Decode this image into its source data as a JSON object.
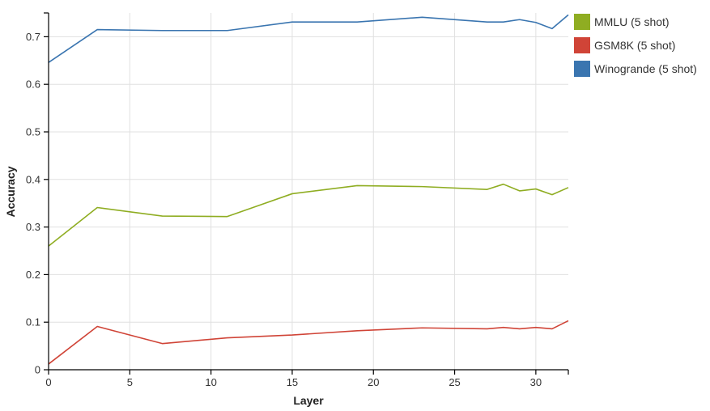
{
  "chart_data": {
    "type": "line",
    "title": "",
    "xlabel": "Layer",
    "ylabel": "Accuracy",
    "xlim": [
      0,
      32
    ],
    "ylim": [
      0,
      0.75
    ],
    "x_ticks": [
      0,
      5,
      10,
      15,
      20,
      25,
      30
    ],
    "y_ticks": [
      0,
      0.1,
      0.2,
      0.3,
      0.4,
      0.5,
      0.6,
      0.7
    ],
    "grid": true,
    "legend_position": "right",
    "series": [
      {
        "name": "MMLU (5 shot)",
        "color": "#8fad22",
        "points": [
          [
            0,
            0.26
          ],
          [
            3,
            0.341
          ],
          [
            7,
            0.323
          ],
          [
            11,
            0.322
          ],
          [
            15,
            0.37
          ],
          [
            19,
            0.387
          ],
          [
            23,
            0.385
          ],
          [
            27,
            0.379
          ],
          [
            28,
            0.39
          ],
          [
            29,
            0.376
          ],
          [
            30,
            0.38
          ],
          [
            31,
            0.368
          ],
          [
            32,
            0.383
          ]
        ]
      },
      {
        "name": "GSM8K (5 shot)",
        "color": "#d04437",
        "points": [
          [
            0,
            0.012
          ],
          [
            3,
            0.091
          ],
          [
            7,
            0.055
          ],
          [
            11,
            0.067
          ],
          [
            15,
            0.073
          ],
          [
            19,
            0.082
          ],
          [
            23,
            0.088
          ],
          [
            27,
            0.086
          ],
          [
            28,
            0.089
          ],
          [
            29,
            0.086
          ],
          [
            30,
            0.089
          ],
          [
            31,
            0.086
          ],
          [
            32,
            0.103
          ]
        ]
      },
      {
        "name": "Winogrande (5 shot)",
        "color": "#3a75b0",
        "points": [
          [
            0,
            0.646
          ],
          [
            3,
            0.715
          ],
          [
            7,
            0.713
          ],
          [
            11,
            0.713
          ],
          [
            15,
            0.731
          ],
          [
            19,
            0.731
          ],
          [
            23,
            0.741
          ],
          [
            27,
            0.731
          ],
          [
            28,
            0.731
          ],
          [
            29,
            0.736
          ],
          [
            30,
            0.73
          ],
          [
            31,
            0.717
          ],
          [
            32,
            0.746
          ]
        ]
      }
    ]
  }
}
